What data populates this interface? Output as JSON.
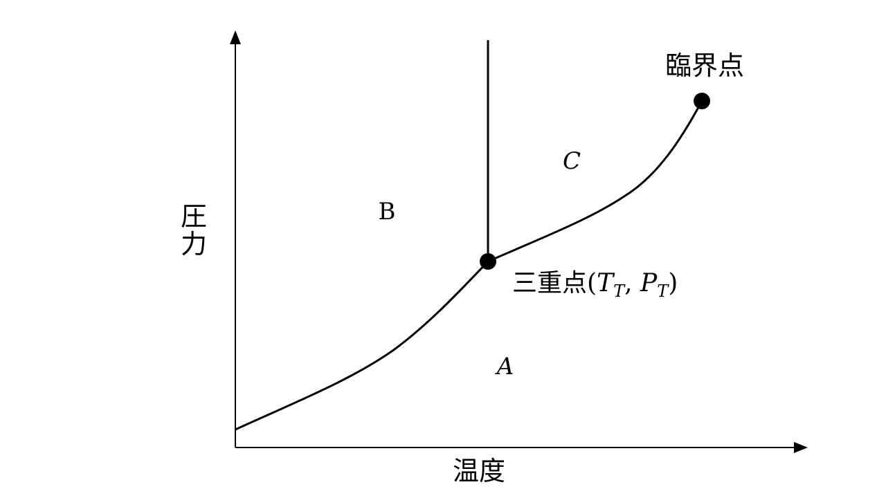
{
  "axes": {
    "y_label_line1": "圧",
    "y_label_line2": "力",
    "x_label": "温度"
  },
  "regions": {
    "a": "A",
    "b": "B",
    "c": "C"
  },
  "points": {
    "critical_point": "臨界点",
    "triple_point_prefix": "三重点",
    "triple_point_open": "(",
    "triple_point_t": "T",
    "triple_point_t_sub": "T",
    "triple_point_sep": ", ",
    "triple_point_p": "P",
    "triple_point_p_sub": "T",
    "triple_point_close": ")"
  },
  "colors": {
    "line": "#000000",
    "background": "#ffffff"
  }
}
